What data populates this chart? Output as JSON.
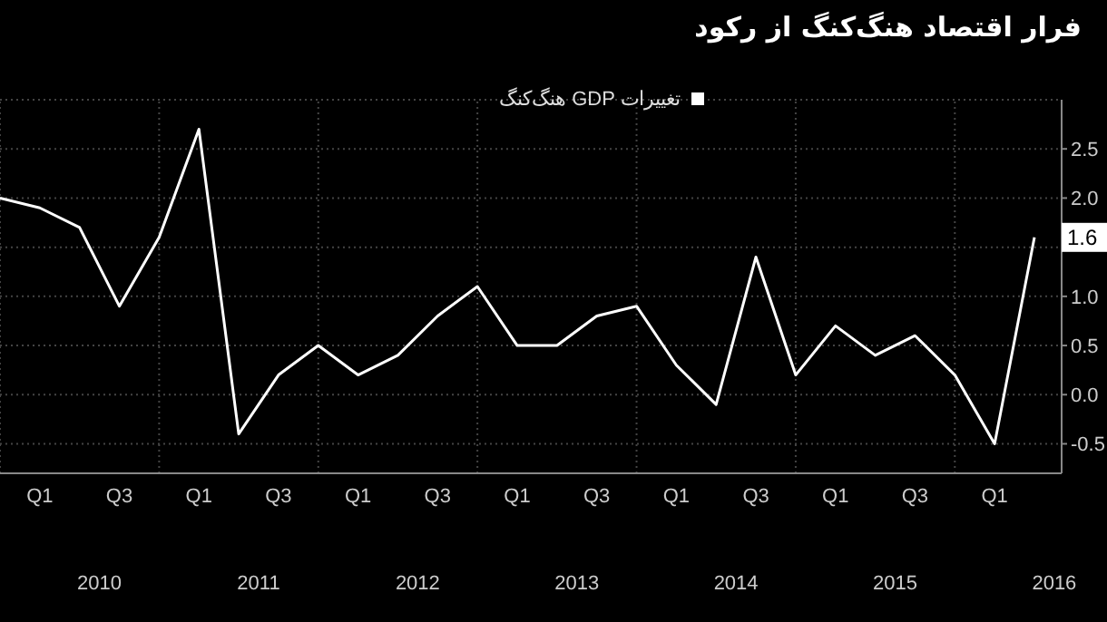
{
  "chart_data": {
    "type": "line",
    "title": "فرار اقتصاد هنگ‌کنگ از رکود",
    "categories": [
      null,
      "Q1",
      null,
      "Q3",
      null,
      "Q1",
      null,
      "Q3",
      null,
      "Q1",
      null,
      "Q3",
      null,
      "Q1",
      null,
      "Q3",
      null,
      "Q1",
      null,
      "Q3",
      null,
      "Q1",
      null,
      "Q3",
      null,
      "Q1",
      null
    ],
    "annotations": [
      "2010",
      "2011",
      "2012",
      "2013",
      "2014",
      "2015",
      "2016"
    ],
    "series": [
      {
        "name": "تغییرات GDP هنگ‌کنگ",
        "color": "#ffffff",
        "values": [
          2.0,
          1.9,
          1.7,
          0.9,
          1.6,
          2.7,
          -0.4,
          0.2,
          0.5,
          0.2,
          0.4,
          0.8,
          1.1,
          0.5,
          0.5,
          0.8,
          0.9,
          0.3,
          -0.1,
          1.4,
          0.2,
          0.7,
          0.4,
          0.6,
          0.2,
          -0.5,
          1.6
        ],
        "value_labels": [
          null,
          null,
          null,
          null,
          null,
          null,
          null,
          null,
          null,
          null,
          null,
          null,
          null,
          null,
          null,
          null,
          null,
          null,
          null,
          null,
          null,
          null,
          null,
          null,
          null,
          null,
          "1.6"
        ]
      }
    ],
    "ylim": [
      -0.8,
      3.0
    ],
    "yticks": [
      {
        "value": -0.5,
        "label": "-0.5"
      },
      {
        "value": 0,
        "label": "0.0"
      },
      {
        "value": 0.5,
        "label": "0.5"
      },
      {
        "value": 1,
        "label": "1.0"
      },
      {
        "value": 1.5,
        "label": null
      },
      {
        "value": 2,
        "label": "2.0"
      },
      {
        "value": 2.5,
        "label": "2.5"
      }
    ],
    "grid": true,
    "legend": "top right",
    "marker": "none",
    "line_style": "solid"
  }
}
